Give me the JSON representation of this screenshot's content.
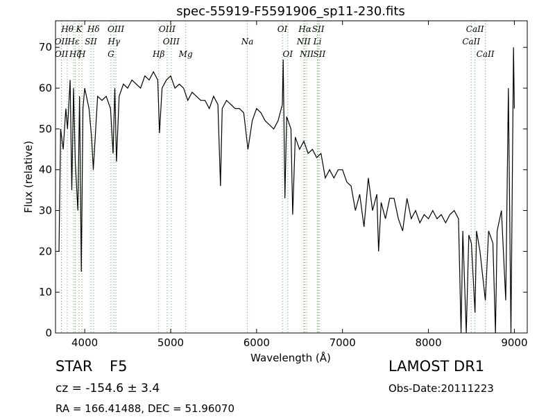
{
  "chart_data": {
    "type": "line",
    "title": "spec-55919-F5591906_sp11-230.fits",
    "x_label": "Wavelength (Å)",
    "y_label": "Flux (relative)",
    "xlim": [
      3660,
      9150
    ],
    "ylim": [
      0,
      76.5
    ],
    "xticks": [
      4000,
      5000,
      6000,
      7000,
      8000,
      9000
    ],
    "yticks": [
      0,
      10,
      20,
      30,
      40,
      50,
      60,
      70
    ],
    "grid": false,
    "x": [
      3700,
      3720,
      3750,
      3780,
      3800,
      3830,
      3850,
      3870,
      3890,
      3920,
      3940,
      3960,
      3980,
      4000,
      4050,
      4080,
      4100,
      4150,
      4200,
      4250,
      4300,
      4330,
      4350,
      4370,
      4400,
      4450,
      4500,
      4550,
      4600,
      4650,
      4700,
      4750,
      4800,
      4850,
      4870,
      4900,
      4950,
      5000,
      5050,
      5100,
      5150,
      5200,
      5250,
      5300,
      5350,
      5400,
      5450,
      5500,
      5550,
      5580,
      5600,
      5650,
      5700,
      5750,
      5800,
      5850,
      5900,
      5950,
      6000,
      6050,
      6100,
      6150,
      6200,
      6250,
      6300,
      6310,
      6330,
      6350,
      6400,
      6420,
      6450,
      6500,
      6550,
      6600,
      6650,
      6700,
      6750,
      6800,
      6850,
      6900,
      6950,
      7000,
      7050,
      7100,
      7150,
      7200,
      7250,
      7300,
      7350,
      7400,
      7420,
      7450,
      7500,
      7550,
      7600,
      7650,
      7700,
      7750,
      7800,
      7850,
      7900,
      7950,
      8000,
      8050,
      8100,
      8150,
      8200,
      8250,
      8300,
      8350,
      8380,
      8400,
      8440,
      8470,
      8500,
      8542,
      8560,
      8600,
      8662,
      8700,
      8750,
      8780,
      8800,
      8850,
      8900,
      8930,
      8960,
      8990,
      9000
    ],
    "series": [
      {
        "name": "flux",
        "color": "#000000",
        "values": [
          20,
          50,
          45,
          55,
          50,
          62,
          35,
          60,
          42,
          30,
          58,
          15,
          55,
          60,
          55,
          48,
          40,
          58,
          57,
          58,
          55,
          44,
          60,
          42,
          58,
          61,
          60,
          62,
          61,
          60,
          63,
          62,
          64,
          62,
          49,
          60,
          62,
          63,
          60,
          61,
          60,
          57,
          59,
          58,
          57,
          57,
          55,
          58,
          56,
          36,
          55,
          57,
          56,
          55,
          55,
          54,
          45,
          52,
          55,
          54,
          52,
          51,
          50,
          52,
          56,
          67,
          33,
          53,
          50,
          29,
          48,
          45,
          47,
          44,
          45,
          43,
          44,
          38,
          40,
          38,
          40,
          40,
          37,
          36,
          30,
          34,
          26,
          38,
          30,
          34,
          20,
          32,
          28,
          33,
          33,
          28,
          25,
          33,
          28,
          30,
          27,
          29,
          28,
          30,
          28,
          29,
          27,
          29,
          30,
          28,
          0,
          25,
          0,
          24,
          22,
          5,
          25,
          20,
          8,
          25,
          22,
          0,
          25,
          30,
          8,
          60,
          0,
          70,
          55
        ]
      }
    ],
    "line_color": "#55aa55",
    "lines": [
      {
        "name": "Hθ",
        "x": 3798,
        "row": 0
      },
      {
        "name": "K",
        "x": 3934,
        "row": 0
      },
      {
        "name": "Hδ",
        "x": 4102,
        "row": 0
      },
      {
        "name": "OIII",
        "x": 4363,
        "row": 0
      },
      {
        "name": "OIII",
        "x": 4959,
        "row": 0
      },
      {
        "name": "OI",
        "x": 6300,
        "row": 0
      },
      {
        "name": "Hα",
        "x": 6563,
        "row": 0
      },
      {
        "name": "SII",
        "x": 6717,
        "row": 0
      },
      {
        "name": "CaII",
        "x": 8542,
        "row": 0
      },
      {
        "name": "OII",
        "x": 3727,
        "row": 1
      },
      {
        "name": "Hε",
        "x": 3870,
        "row": 1
      },
      {
        "name": "SII",
        "x": 4072,
        "row": 1
      },
      {
        "name": "Hγ",
        "x": 4340,
        "row": 1
      },
      {
        "name": "OIII",
        "x": 5007,
        "row": 1
      },
      {
        "name": "Na",
        "x": 5893,
        "row": 1
      },
      {
        "name": "NII",
        "x": 6548,
        "row": 1
      },
      {
        "name": "Li",
        "x": 6708,
        "row": 1
      },
      {
        "name": "CaII",
        "x": 8498,
        "row": 1
      },
      {
        "name": "OII",
        "x": 3729,
        "row": 2
      },
      {
        "name": "Hζ",
        "x": 3889,
        "row": 2
      },
      {
        "name": "H",
        "x": 3969,
        "row": 2
      },
      {
        "name": "G",
        "x": 4305,
        "row": 2
      },
      {
        "name": "Hβ",
        "x": 4861,
        "row": 2
      },
      {
        "name": "Mg",
        "x": 5175,
        "row": 2
      },
      {
        "name": "OI",
        "x": 6363,
        "row": 2
      },
      {
        "name": "NII",
        "x": 6584,
        "row": 2
      },
      {
        "name": "SII",
        "x": 6731,
        "row": 2
      },
      {
        "name": "CaII",
        "x": 8662,
        "row": 2
      }
    ],
    "class": "STAR",
    "subclass": "F5",
    "redshift": "cz = -154.6 ± 3.4",
    "coords": "RA = 166.41488, DEC = 51.96070",
    "survey": "LAMOST DR1",
    "obs_date": "Obs-Date:20111223"
  }
}
